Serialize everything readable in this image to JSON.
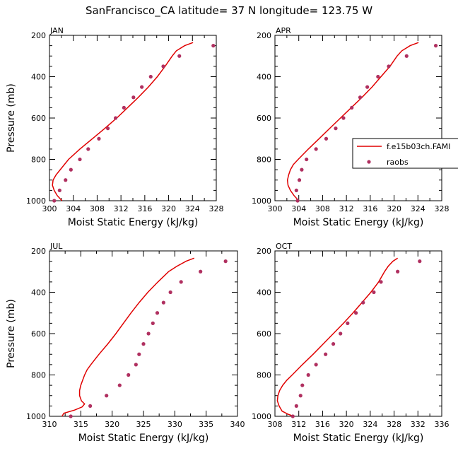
{
  "page": {
    "suptitle": "SanFrancisco_CA  latitude= 37 N longitude= 123.75 W"
  },
  "legend": {
    "model_label": "f.e15b03ch.FAMI",
    "obs_label": "raobs"
  },
  "colors": {
    "model_line": "#e00000",
    "obs_dots": "#b03060",
    "axes": "#000000"
  },
  "chart_data": [
    {
      "type": "line",
      "panel_label": "JAN",
      "xlabel": "Moist Static Energy (kJ/kg)",
      "ylabel": "Pressure (mb)",
      "xlim": [
        300,
        328
      ],
      "ylim": [
        1000,
        200
      ],
      "xticks": [
        300,
        304,
        308,
        312,
        316,
        320,
        324,
        328
      ],
      "yticks": [
        200,
        400,
        600,
        800,
        1000
      ],
      "model": {
        "name": "f.e15b03ch.FAMI",
        "p": [
          1000,
          975,
          950,
          925,
          900,
          875,
          850,
          800,
          750,
          700,
          650,
          600,
          550,
          500,
          450,
          400,
          350,
          300,
          275,
          250,
          235
        ],
        "mse": [
          302.1,
          301.3,
          300.8,
          300.5,
          300.6,
          301.1,
          301.8,
          303.2,
          305.1,
          307.2,
          309.3,
          311.3,
          313.1,
          314.9,
          316.6,
          318.1,
          319.4,
          320.6,
          321.3,
          322.7,
          324.1
        ]
      },
      "obs": {
        "name": "raobs",
        "p": [
          1000,
          950,
          900,
          850,
          800,
          750,
          700,
          650,
          600,
          550,
          500,
          450,
          400,
          350,
          300,
          250
        ],
        "mse": [
          300.8,
          301.7,
          302.7,
          303.6,
          305.1,
          306.5,
          308.3,
          309.8,
          311.1,
          312.5,
          314.1,
          315.5,
          317.0,
          319.1,
          321.8,
          327.5
        ]
      }
    },
    {
      "type": "line",
      "panel_label": "APR",
      "xlabel": "Moist Static Energy (kJ/kg)",
      "ylabel": "",
      "xlim": [
        300,
        328
      ],
      "ylim": [
        1000,
        200
      ],
      "xticks": [
        300,
        304,
        308,
        312,
        316,
        320,
        324,
        328
      ],
      "yticks": [
        200,
        400,
        600,
        800,
        1000
      ],
      "model": {
        "name": "f.e15b03ch.FAMI",
        "p": [
          1000,
          975,
          950,
          925,
          900,
          875,
          850,
          825,
          800,
          750,
          700,
          650,
          600,
          550,
          500,
          450,
          400,
          350,
          300,
          275,
          250,
          235
        ],
        "mse": [
          304.0,
          303.2,
          302.6,
          302.2,
          302.1,
          302.3,
          302.6,
          303.1,
          303.9,
          305.6,
          307.4,
          309.2,
          311.0,
          312.8,
          314.6,
          316.3,
          317.8,
          319.3,
          320.5,
          321.3,
          322.7,
          324.1
        ]
      },
      "obs": {
        "name": "raobs",
        "p": [
          1000,
          950,
          900,
          850,
          800,
          750,
          700,
          650,
          600,
          550,
          500,
          450,
          400,
          350,
          300,
          250
        ],
        "mse": [
          303.8,
          303.6,
          304.1,
          304.5,
          305.3,
          306.9,
          308.6,
          310.2,
          311.5,
          312.9,
          314.3,
          315.5,
          317.3,
          319.1,
          322.1,
          327.0
        ]
      }
    },
    {
      "type": "line",
      "panel_label": "JUL",
      "xlabel": "Moist Static Energy (kJ/kg)",
      "ylabel": "Pressure (mb)",
      "xlim": [
        310,
        340
      ],
      "ylim": [
        1000,
        200
      ],
      "xticks": [
        310,
        315,
        320,
        325,
        330,
        335,
        340
      ],
      "yticks": [
        200,
        400,
        600,
        800,
        1000
      ],
      "model": {
        "name": "f.e15b03ch.FAMI",
        "p": [
          1000,
          985,
          970,
          955,
          940,
          925,
          900,
          875,
          850,
          825,
          800,
          775,
          750,
          700,
          650,
          600,
          550,
          500,
          450,
          400,
          350,
          300,
          275,
          250,
          235
        ],
        "mse": [
          312.0,
          312.3,
          314.0,
          315.2,
          315.6,
          315.1,
          314.8,
          314.8,
          315.0,
          315.3,
          315.6,
          316.0,
          316.6,
          317.9,
          319.3,
          320.6,
          321.8,
          323.0,
          324.3,
          325.7,
          327.3,
          329.0,
          330.3,
          331.8,
          333.1
        ]
      },
      "obs": {
        "name": "raobs",
        "p": [
          1000,
          950,
          900,
          850,
          800,
          750,
          700,
          650,
          600,
          550,
          500,
          450,
          400,
          350,
          300,
          250
        ],
        "mse": [
          313.4,
          316.5,
          319.1,
          321.2,
          322.6,
          323.8,
          324.3,
          325.0,
          325.8,
          326.5,
          327.2,
          328.2,
          329.3,
          331.0,
          334.1,
          338.1
        ]
      }
    },
    {
      "type": "line",
      "panel_label": "OCT",
      "xlabel": "Moist Static Energy (kJ/kg)",
      "ylabel": "",
      "xlim": [
        308,
        336
      ],
      "ylim": [
        1000,
        200
      ],
      "xticks": [
        308,
        312,
        316,
        320,
        324,
        328,
        332,
        336
      ],
      "yticks": [
        200,
        400,
        600,
        800,
        1000
      ],
      "model": {
        "name": "f.e15b03ch.FAMI",
        "p": [
          1000,
          990,
          975,
          950,
          925,
          900,
          875,
          850,
          825,
          800,
          750,
          700,
          650,
          600,
          550,
          500,
          450,
          400,
          350,
          300,
          275,
          250,
          235
        ],
        "mse": [
          311.2,
          310.2,
          309.2,
          308.7,
          308.4,
          308.5,
          308.8,
          309.3,
          310.0,
          310.9,
          312.6,
          314.4,
          316.1,
          317.8,
          319.5,
          321.1,
          322.6,
          324.1,
          325.4,
          326.4,
          327.0,
          327.8,
          328.6
        ]
      },
      "obs": {
        "name": "raobs",
        "p": [
          1000,
          950,
          900,
          850,
          800,
          750,
          700,
          650,
          600,
          550,
          500,
          450,
          400,
          350,
          300,
          250
        ],
        "mse": [
          311.0,
          311.6,
          312.3,
          312.6,
          313.6,
          314.9,
          316.5,
          317.8,
          319.0,
          320.2,
          321.6,
          322.8,
          324.6,
          325.8,
          328.6,
          332.3
        ]
      }
    }
  ]
}
